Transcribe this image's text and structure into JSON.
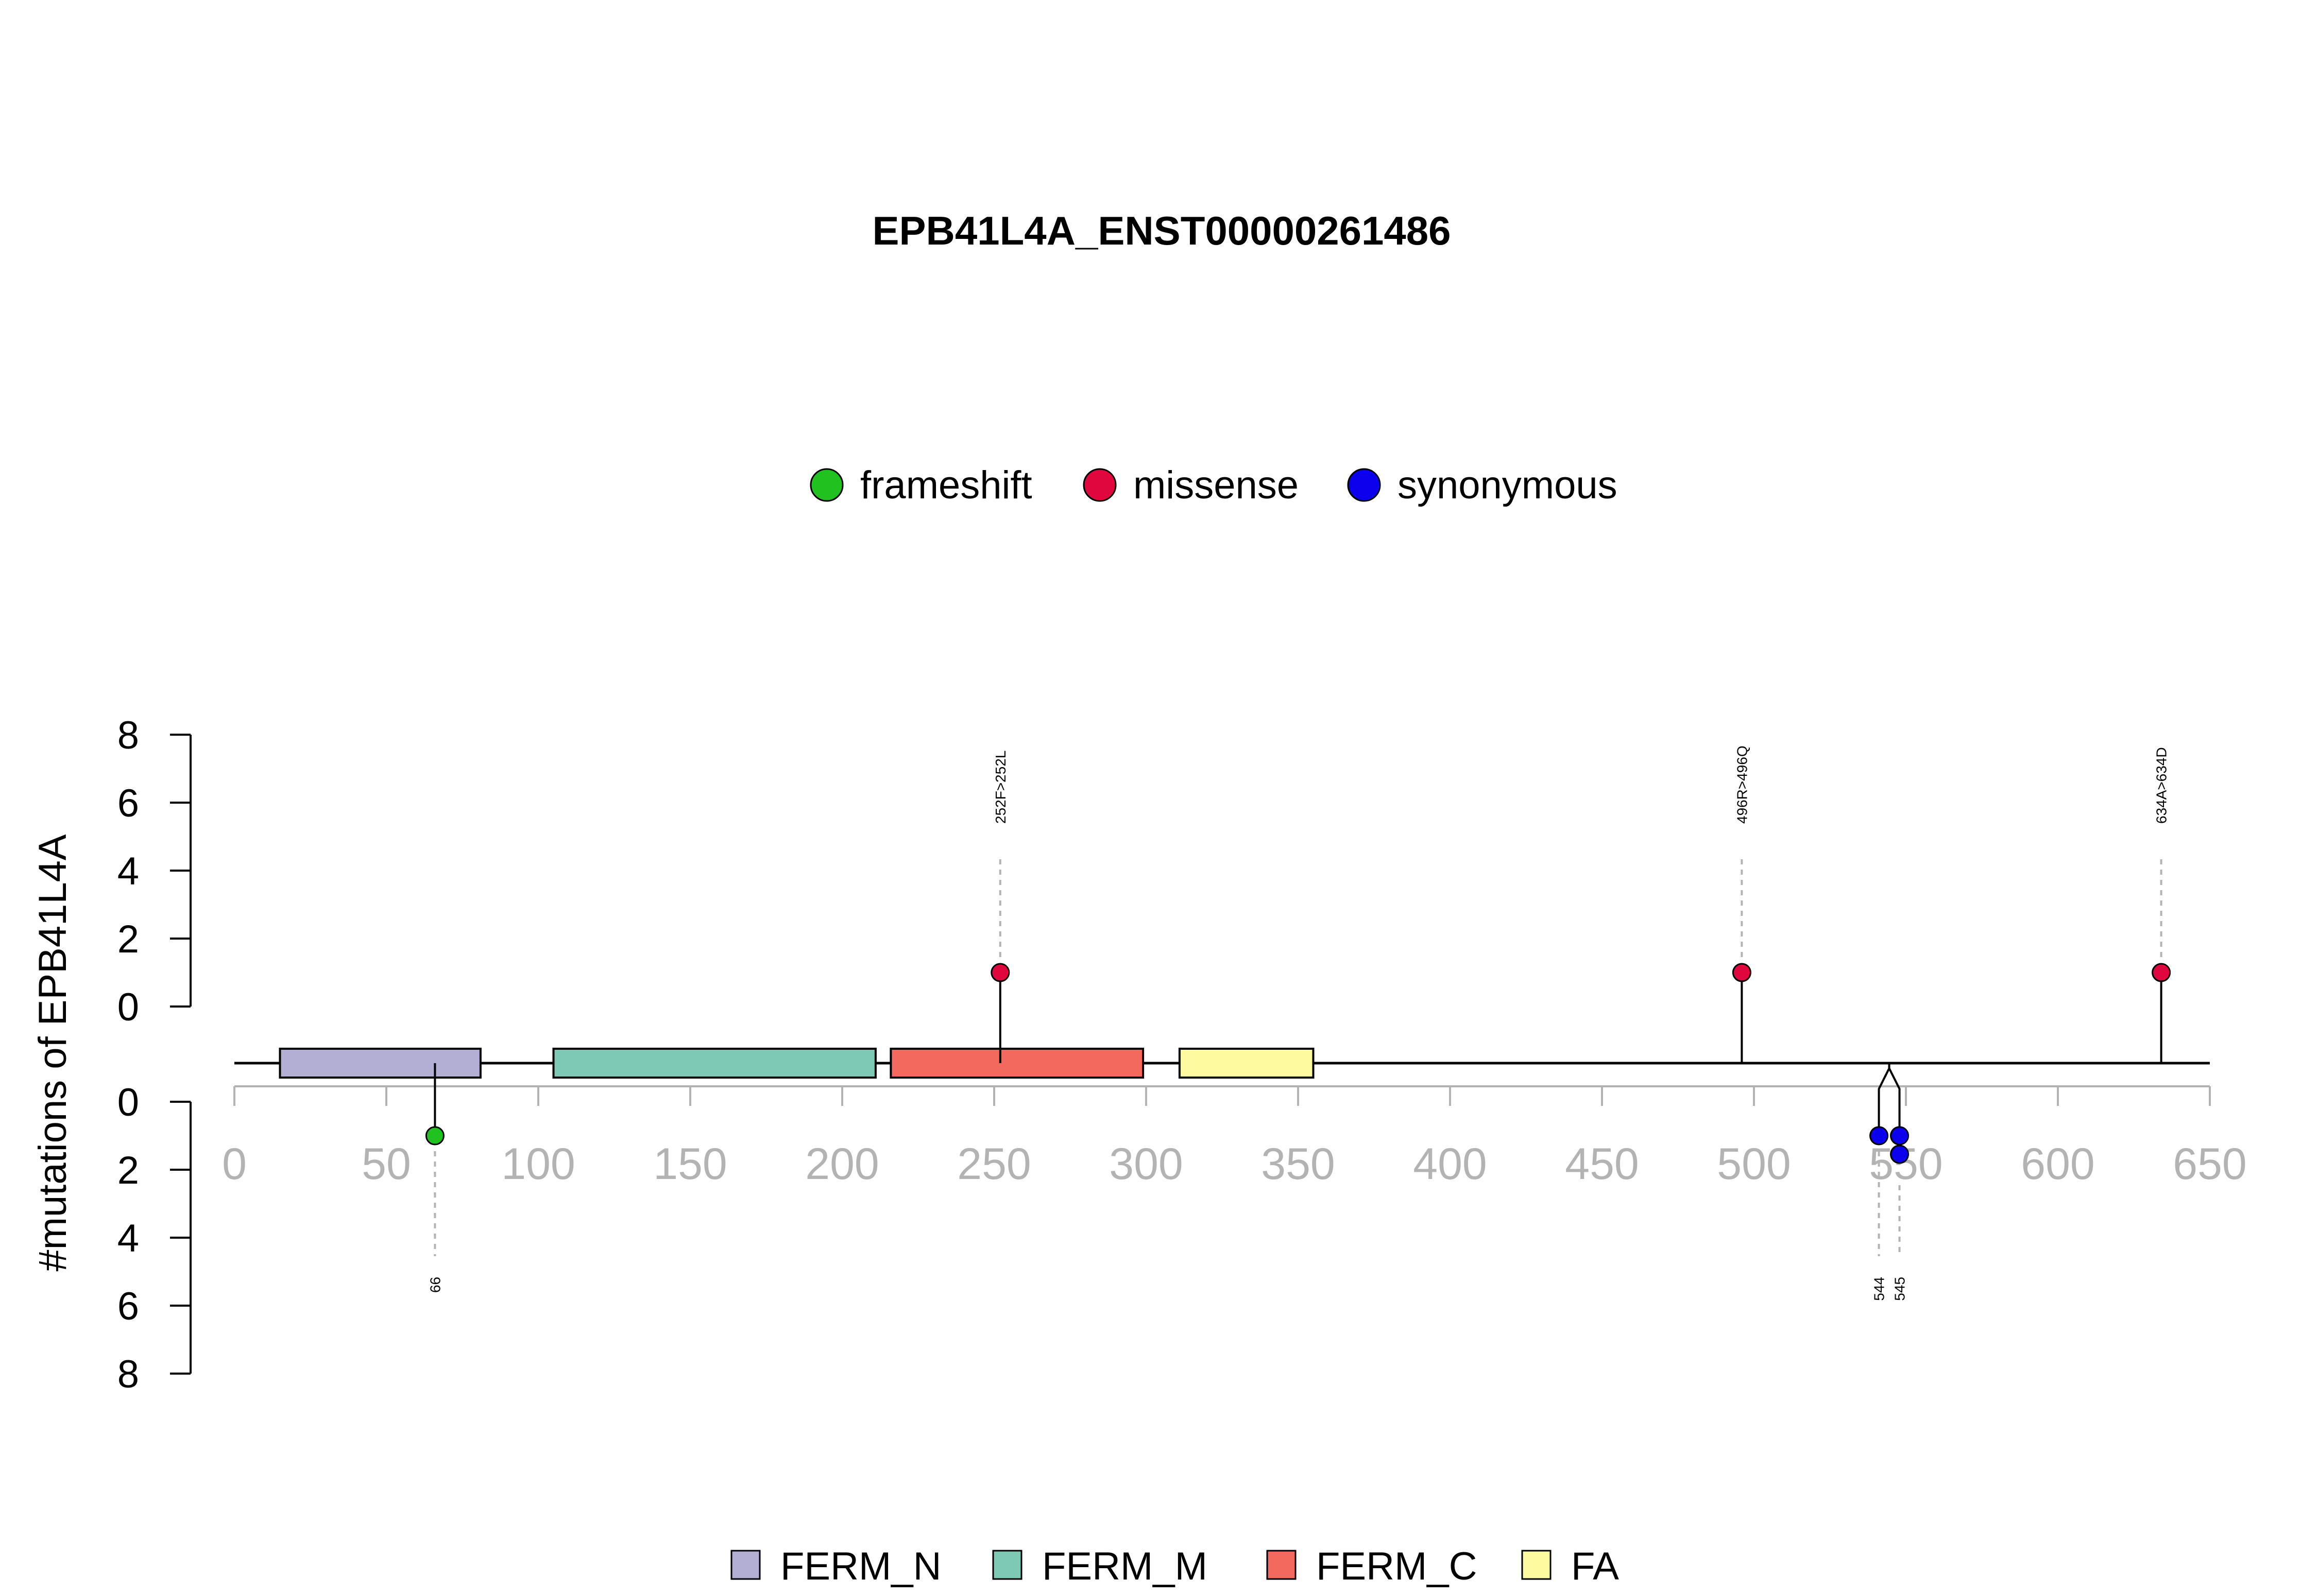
{
  "chart_data": {
    "type": "lollipop",
    "title": "EPB41L4A_ENST00000261486",
    "ylabel": "#mutations of EPB41L4A",
    "xlim": [
      0,
      650
    ],
    "x_ticks": [
      "0",
      "50",
      "100",
      "150",
      "200",
      "250",
      "300",
      "350",
      "400",
      "450",
      "500",
      "550",
      "600",
      "650"
    ],
    "y_ticks_upper": [
      "8",
      "6",
      "4",
      "2",
      "0"
    ],
    "y_ticks_lower": [
      "0",
      "2",
      "4",
      "6",
      "8"
    ],
    "mutation_types": [
      {
        "name": "frameshift",
        "color": "#1fc21f"
      },
      {
        "name": "missense",
        "color": "#e0063e"
      },
      {
        "name": "synonymous",
        "color": "#0a00ee"
      }
    ],
    "domains": [
      {
        "name": "FERM_N",
        "start": 15,
        "end": 81,
        "color": "#b3aed4"
      },
      {
        "name": "FERM_M",
        "start": 105,
        "end": 211,
        "color": "#7dc9b5"
      },
      {
        "name": "FERM_C",
        "start": 216,
        "end": 299,
        "color": "#f3695d"
      },
      {
        "name": "FA",
        "start": 311,
        "end": 355,
        "color": "#fdfaa0"
      }
    ],
    "upper_mutations": [
      {
        "position": 252,
        "label": "252F>252L",
        "type": "missense",
        "count": 1
      },
      {
        "position": 496,
        "label": "496R>496Q",
        "type": "missense",
        "count": 1
      },
      {
        "position": 634,
        "label": "634A>634D",
        "type": "missense",
        "count": 1
      }
    ],
    "lower_mutations": [
      {
        "position": 66,
        "label": "66",
        "type": "frameshift",
        "count": 1
      },
      {
        "position": 544,
        "label": "544",
        "type": "synonymous",
        "count": 1
      },
      {
        "position": 545,
        "label": "545",
        "type": "synonymous",
        "count": 2
      }
    ]
  }
}
